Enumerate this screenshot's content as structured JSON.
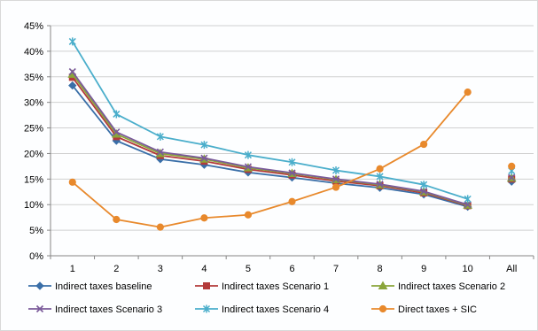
{
  "chart_data": {
    "type": "line",
    "categories": [
      "1",
      "2",
      "3",
      "4",
      "5",
      "6",
      "7",
      "8",
      "9",
      "10",
      "All"
    ],
    "ylim": [
      0,
      45
    ],
    "yticks": [
      "0%",
      "5%",
      "10%",
      "15%",
      "20%",
      "25%",
      "30%",
      "35%",
      "40%",
      "45%"
    ],
    "grid": true,
    "legend_position": "bottom",
    "series": [
      {
        "name": "Indirect taxes baseline",
        "color": "#3a6fa8",
        "marker": "diamond",
        "values": [
          33.3,
          22.5,
          18.9,
          17.8,
          16.3,
          15.3,
          14.2,
          13.3,
          12.0,
          9.6,
          14.5
        ]
      },
      {
        "name": "Indirect taxes Scenario 1",
        "color": "#b33a3a",
        "marker": "square",
        "values": [
          34.9,
          23.3,
          19.6,
          18.5,
          16.9,
          15.8,
          14.6,
          13.7,
          12.3,
          9.8,
          15.0
        ]
      },
      {
        "name": "Indirect taxes Scenario 2",
        "color": "#8aa53a",
        "marker": "triangle",
        "values": [
          35.5,
          23.8,
          20.0,
          18.9,
          17.2,
          16.1,
          14.9,
          13.9,
          12.5,
          9.9,
          15.2
        ]
      },
      {
        "name": "Indirect taxes Scenario 3",
        "color": "#7a5a9a",
        "marker": "x",
        "values": [
          36.0,
          24.2,
          20.3,
          19.1,
          17.4,
          16.2,
          15.0,
          14.0,
          12.6,
          10.0,
          15.3
        ]
      },
      {
        "name": "Indirect taxes Scenario 4",
        "color": "#4aaecb",
        "marker": "star",
        "values": [
          41.9,
          27.7,
          23.3,
          21.7,
          19.7,
          18.3,
          16.7,
          15.5,
          13.9,
          11.1,
          16.6
        ]
      },
      {
        "name": "Direct taxes + SIC",
        "color": "#e8892c",
        "marker": "circle",
        "values": [
          14.4,
          7.1,
          5.6,
          7.4,
          8.0,
          10.6,
          13.4,
          17.0,
          21.8,
          32.0,
          17.5
        ]
      }
    ]
  }
}
